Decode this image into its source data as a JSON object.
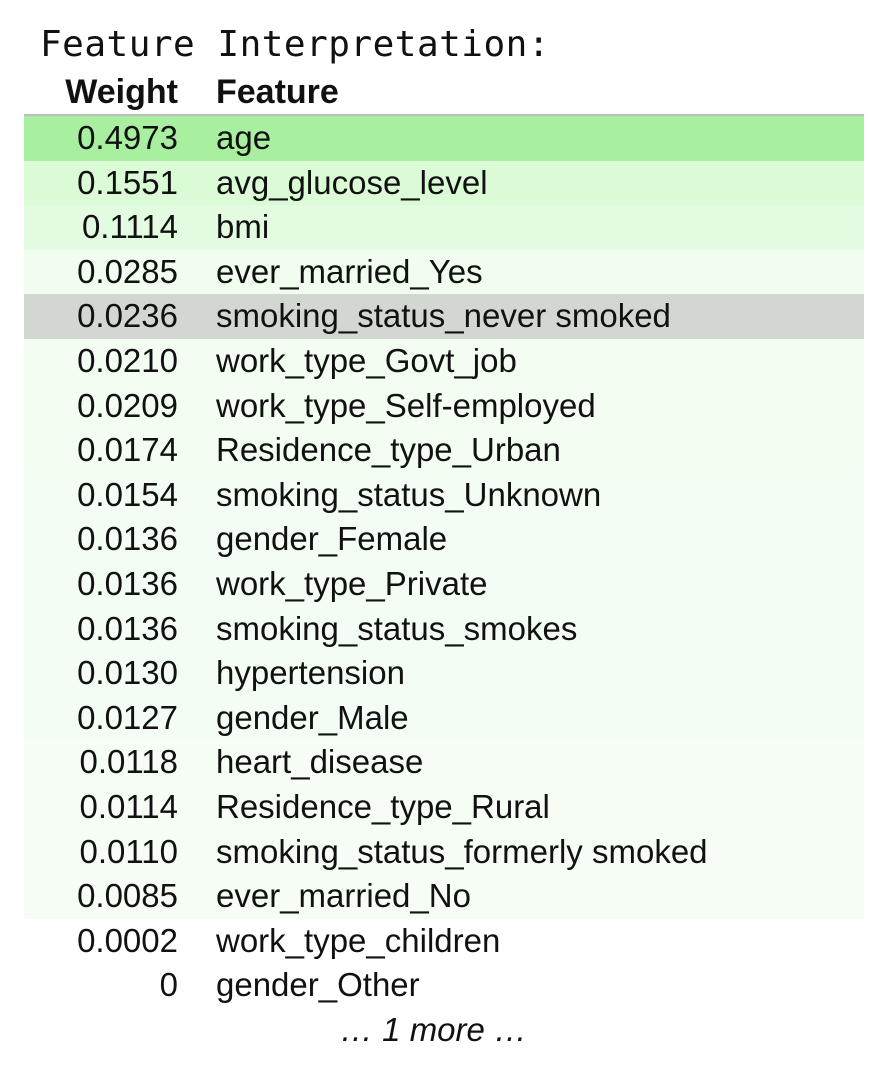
{
  "heading": "Feature Interpretation:",
  "columns": {
    "weight": "Weight",
    "feature": "Feature"
  },
  "rows": [
    {
      "weight": "0.4973",
      "feature": "age",
      "bg": "#a8f0a0"
    },
    {
      "weight": "0.1551",
      "feature": "avg_glucose_level",
      "bg": "#dafbd6"
    },
    {
      "weight": "0.1114",
      "feature": "bmi",
      "bg": "#e3fbe0"
    },
    {
      "weight": "0.0285",
      "feature": "ever_married_Yes",
      "bg": "#f1fdef"
    },
    {
      "weight": "0.0236",
      "feature": "smoking_status_never smoked",
      "bg": "#d2d8d1"
    },
    {
      "weight": "0.0210",
      "feature": "work_type_Govt_job",
      "bg": "#f3fdf2"
    },
    {
      "weight": "0.0209",
      "feature": "work_type_Self-employed",
      "bg": "#f3fdf2"
    },
    {
      "weight": "0.0174",
      "feature": "Residence_type_Urban",
      "bg": "#f3fdf2"
    },
    {
      "weight": "0.0154",
      "feature": "smoking_status_Unknown",
      "bg": "#f4fdf3"
    },
    {
      "weight": "0.0136",
      "feature": "gender_Female",
      "bg": "#f4fdf3"
    },
    {
      "weight": "0.0136",
      "feature": "work_type_Private",
      "bg": "#f4fdf3"
    },
    {
      "weight": "0.0136",
      "feature": "smoking_status_smokes",
      "bg": "#f4fdf3"
    },
    {
      "weight": "0.0130",
      "feature": "hypertension",
      "bg": "#f4fdf3"
    },
    {
      "weight": "0.0127",
      "feature": "gender_Male",
      "bg": "#f4fdf3"
    },
    {
      "weight": "0.0118",
      "feature": "heart_disease",
      "bg": "#f5fdf4"
    },
    {
      "weight": "0.0114",
      "feature": "Residence_type_Rural",
      "bg": "#f5fdf4"
    },
    {
      "weight": "0.0110",
      "feature": "smoking_status_formerly smoked",
      "bg": "#f5fdf4"
    },
    {
      "weight": "0.0085",
      "feature": "ever_married_No",
      "bg": "#f6fdf5"
    },
    {
      "weight": "0.0002",
      "feature": "work_type_children",
      "bg": "#ffffff"
    },
    {
      "weight": "0",
      "feature": "gender_Other",
      "bg": "#ffffff"
    }
  ],
  "more_text": "… 1 more …"
}
